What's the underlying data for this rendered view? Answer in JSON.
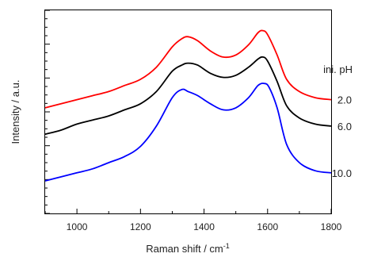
{
  "chart_data": {
    "type": "line",
    "title": "",
    "xlabel": "Raman shift / cm",
    "xlabel_superscript": "-1",
    "ylabel": "Intensity / a.u.",
    "xlim": [
      900,
      1800
    ],
    "ylim": [
      0,
      1
    ],
    "xticks": [
      1000,
      1200,
      1400,
      1600,
      1800
    ],
    "y_tick_labels_shown": false,
    "grid": false,
    "legend_title": "ini. pH",
    "legend_placement": "right, beside each curve",
    "series": [
      {
        "name": "2.0",
        "color": "#ff0000",
        "x": [
          900,
          950,
          1000,
          1050,
          1100,
          1150,
          1200,
          1250,
          1300,
          1330,
          1350,
          1380,
          1420,
          1460,
          1500,
          1540,
          1570,
          1585,
          1600,
          1630,
          1660,
          1700,
          1750,
          1800
        ],
        "y": [
          0.52,
          0.54,
          0.56,
          0.58,
          0.6,
          0.63,
          0.66,
          0.72,
          0.82,
          0.86,
          0.87,
          0.85,
          0.8,
          0.77,
          0.78,
          0.83,
          0.89,
          0.9,
          0.88,
          0.78,
          0.66,
          0.6,
          0.57,
          0.56
        ]
      },
      {
        "name": "6.0",
        "color": "#000000",
        "x": [
          900,
          950,
          1000,
          1050,
          1100,
          1150,
          1200,
          1250,
          1300,
          1330,
          1350,
          1380,
          1420,
          1460,
          1500,
          1540,
          1570,
          1585,
          1600,
          1630,
          1660,
          1700,
          1750,
          1800
        ],
        "y": [
          0.39,
          0.41,
          0.44,
          0.46,
          0.48,
          0.51,
          0.54,
          0.6,
          0.7,
          0.73,
          0.74,
          0.73,
          0.69,
          0.67,
          0.68,
          0.72,
          0.76,
          0.77,
          0.75,
          0.65,
          0.53,
          0.47,
          0.44,
          0.43
        ]
      },
      {
        "name": "10.0",
        "color": "#0000ff",
        "x": [
          900,
          950,
          1000,
          1050,
          1100,
          1150,
          1200,
          1250,
          1300,
          1330,
          1350,
          1380,
          1420,
          1460,
          1500,
          1540,
          1570,
          1590,
          1605,
          1630,
          1660,
          1700,
          1750,
          1800
        ],
        "y": [
          0.16,
          0.18,
          0.2,
          0.22,
          0.25,
          0.28,
          0.33,
          0.43,
          0.57,
          0.61,
          0.6,
          0.58,
          0.54,
          0.51,
          0.52,
          0.57,
          0.63,
          0.64,
          0.62,
          0.52,
          0.34,
          0.25,
          0.21,
          0.2
        ]
      }
    ]
  }
}
